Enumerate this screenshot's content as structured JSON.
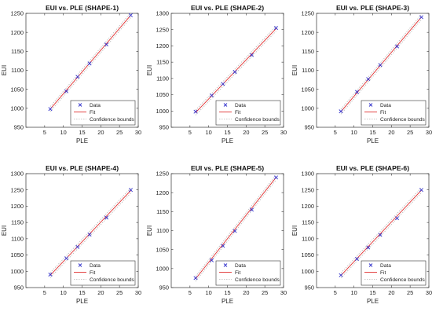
{
  "legend_labels": {
    "data": "Data",
    "fit": "Fit",
    "bounds": "Confidence bounds"
  },
  "colors": {
    "data": "#3333cc",
    "fit": "#e03030",
    "bounds": "#b8b8b8",
    "axis": "#333333",
    "background": "#ffffff"
  },
  "chart_data": [
    {
      "type": "scatter",
      "title": "EUI vs. PLE (SHAPE-1)",
      "xlabel": "PLE",
      "ylabel": "EUI",
      "xlim": [
        0,
        30
      ],
      "ylim": [
        950,
        1250
      ],
      "xticks": [
        5,
        10,
        15,
        20,
        25,
        30
      ],
      "yticks": [
        950,
        1000,
        1050,
        1100,
        1150,
        1200,
        1250
      ],
      "grid": false,
      "legend": "bottom-right",
      "series": [
        {
          "name": "Data",
          "x": [
            6.5,
            10.8,
            13.8,
            17.0,
            21.5,
            28.0
          ],
          "y": [
            998,
            1045,
            1083,
            1118,
            1168,
            1245
          ]
        },
        {
          "name": "Fit",
          "x": [
            6.5,
            28.0
          ],
          "y": [
            998,
            1245
          ]
        }
      ]
    },
    {
      "type": "scatter",
      "title": "EUI vs. PLE (SHAPE-2)",
      "xlabel": "PLE",
      "ylabel": "EUI",
      "xlim": [
        0,
        30
      ],
      "ylim": [
        950,
        1300
      ],
      "xticks": [
        5,
        10,
        15,
        20,
        25,
        30
      ],
      "yticks": [
        950,
        1000,
        1050,
        1100,
        1150,
        1200,
        1250,
        1300
      ],
      "grid": false,
      "legend": "bottom-right",
      "series": [
        {
          "name": "Data",
          "x": [
            6.5,
            10.8,
            13.8,
            17.0,
            21.5,
            28.0
          ],
          "y": [
            998,
            1048,
            1083,
            1120,
            1172,
            1255
          ]
        },
        {
          "name": "Fit",
          "x": [
            6.5,
            28.0
          ],
          "y": [
            995,
            1253
          ]
        }
      ]
    },
    {
      "type": "scatter",
      "title": "EUI vs. PLE (SHAPE-3)",
      "xlabel": "PLE",
      "ylabel": "EUI",
      "xlim": [
        0,
        30
      ],
      "ylim": [
        950,
        1250
      ],
      "xticks": [
        5,
        10,
        15,
        20,
        25,
        30
      ],
      "yticks": [
        950,
        1000,
        1050,
        1100,
        1150,
        1200,
        1250
      ],
      "grid": false,
      "legend": "bottom-right",
      "series": [
        {
          "name": "Data",
          "x": [
            6.5,
            10.8,
            13.8,
            17.0,
            21.5,
            28.0
          ],
          "y": [
            992,
            1043,
            1077,
            1114,
            1163,
            1240
          ]
        },
        {
          "name": "Fit",
          "x": [
            6.5,
            28.0
          ],
          "y": [
            991,
            1240
          ]
        }
      ]
    },
    {
      "type": "scatter",
      "title": "EUI vs. PLE (SHAPE-4)",
      "xlabel": "PLE",
      "ylabel": "EUI",
      "xlim": [
        0,
        30
      ],
      "ylim": [
        950,
        1300
      ],
      "xticks": [
        5,
        10,
        15,
        20,
        25,
        30
      ],
      "yticks": [
        950,
        1000,
        1050,
        1100,
        1150,
        1200,
        1250,
        1300
      ],
      "grid": false,
      "legend": "bottom-right",
      "series": [
        {
          "name": "Data",
          "x": [
            6.5,
            10.8,
            13.8,
            17.0,
            21.5,
            28.0
          ],
          "y": [
            990,
            1040,
            1075,
            1113,
            1165,
            1250
          ]
        },
        {
          "name": "Fit",
          "x": [
            6.5,
            28.0
          ],
          "y": [
            988,
            1248
          ]
        }
      ]
    },
    {
      "type": "scatter",
      "title": "EUI vs. PLE (SHAPE-5)",
      "xlabel": "PLE",
      "ylabel": "EUI",
      "xlim": [
        0,
        30
      ],
      "ylim": [
        950,
        1250
      ],
      "xticks": [
        5,
        10,
        15,
        20,
        25,
        30
      ],
      "yticks": [
        950,
        1000,
        1050,
        1100,
        1150,
        1200,
        1250
      ],
      "grid": false,
      "legend": "bottom-right",
      "series": [
        {
          "name": "Data",
          "x": [
            6.5,
            10.8,
            13.8,
            17.0,
            21.5,
            28.0
          ],
          "y": [
            975,
            1022,
            1060,
            1099,
            1155,
            1240
          ]
        },
        {
          "name": "Fit",
          "x": [
            6.5,
            28.0
          ],
          "y": [
            973,
            1240
          ]
        }
      ]
    },
    {
      "type": "scatter",
      "title": "EUI vs. PLE (SHAPE-6)",
      "xlabel": "PLE",
      "ylabel": "EUI",
      "xlim": [
        0,
        30
      ],
      "ylim": [
        950,
        1300
      ],
      "xticks": [
        5,
        10,
        15,
        20,
        25,
        30
      ],
      "yticks": [
        950,
        1000,
        1050,
        1100,
        1150,
        1200,
        1250,
        1300
      ],
      "grid": false,
      "legend": "bottom-right",
      "series": [
        {
          "name": "Data",
          "x": [
            6.5,
            10.8,
            13.8,
            17.0,
            21.5,
            28.0
          ],
          "y": [
            988,
            1038,
            1073,
            1112,
            1163,
            1250
          ]
        },
        {
          "name": "Fit",
          "x": [
            6.5,
            28.0
          ],
          "y": [
            987,
            1249
          ]
        }
      ]
    }
  ]
}
